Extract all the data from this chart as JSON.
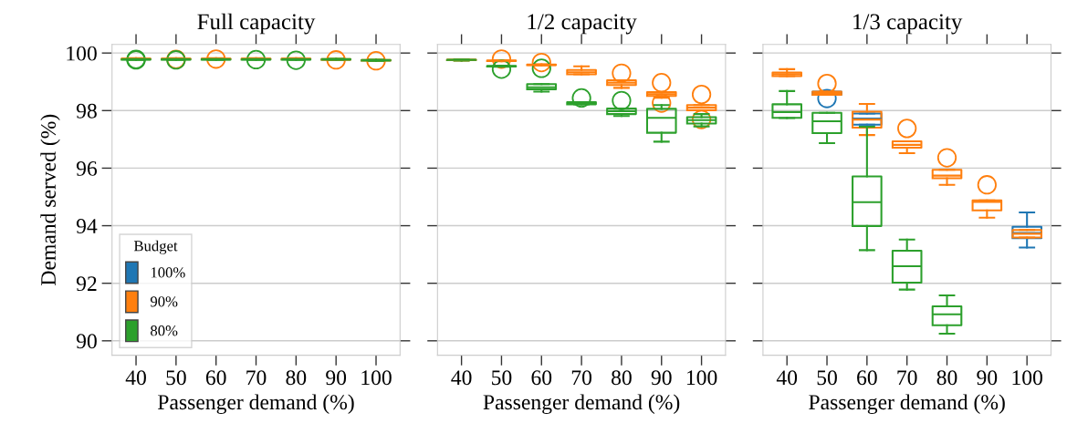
{
  "chart_data": [
    {
      "type": "box",
      "title": "Full capacity",
      "xlabel": "Passenger demand (%)",
      "ylabel": "Demand served (%)",
      "categories": [
        "40",
        "50",
        "60",
        "70",
        "80",
        "90",
        "100"
      ],
      "ylim": [
        89.5,
        100.3
      ],
      "yticks": [
        90,
        92,
        94,
        96,
        98,
        100
      ],
      "grid": "y",
      "legend": "bottom left",
      "legend_title": "Budget",
      "series": [
        {
          "name": "100%",
          "color": "#1f77b4",
          "boxes": [
            null,
            null,
            null,
            null,
            null,
            null,
            null
          ]
        },
        {
          "name": "90%",
          "color": "#ff7f0e",
          "boxes": [
            {
              "low": 99.78,
              "q1": 99.79,
              "median": 99.8,
              "q3": 99.81,
              "high": 99.82
            },
            {
              "low": 99.78,
              "q1": 99.79,
              "median": 99.8,
              "q3": 99.81,
              "high": 99.82,
              "outliers": [
                99.78
              ]
            },
            {
              "low": 99.78,
              "q1": 99.79,
              "median": 99.8,
              "q3": 99.81,
              "high": 99.82,
              "outliers": [
                99.79
              ]
            },
            {
              "low": 99.78,
              "q1": 99.79,
              "median": 99.8,
              "q3": 99.81,
              "high": 99.82
            },
            {
              "low": 99.78,
              "q1": 99.79,
              "median": 99.8,
              "q3": 99.81,
              "high": 99.82
            },
            {
              "low": 99.76,
              "q1": 99.77,
              "median": 99.78,
              "q3": 99.79,
              "high": 99.8,
              "outliers": [
                99.76
              ]
            },
            {
              "low": 99.73,
              "q1": 99.74,
              "median": 99.75,
              "q3": 99.76,
              "high": 99.77,
              "outliers": [
                99.73
              ]
            }
          ]
        },
        {
          "name": "80%",
          "color": "#2ca02c",
          "boxes": [
            {
              "low": 99.76,
              "q1": 99.77,
              "median": 99.78,
              "q3": 99.79,
              "high": 99.8,
              "outliers": [
                99.78,
                99.76
              ]
            },
            {
              "low": 99.76,
              "q1": 99.77,
              "median": 99.78,
              "q3": 99.79,
              "high": 99.8,
              "outliers": [
                99.76
              ]
            },
            {
              "low": 99.76,
              "q1": 99.77,
              "median": 99.78,
              "q3": 99.79,
              "high": 99.8
            },
            {
              "low": 99.76,
              "q1": 99.77,
              "median": 99.78,
              "q3": 99.79,
              "high": 99.8,
              "outliers": [
                99.77
              ]
            },
            {
              "low": 99.76,
              "q1": 99.77,
              "median": 99.78,
              "q3": 99.79,
              "high": 99.8,
              "outliers": [
                99.75
              ]
            },
            {
              "low": 99.76,
              "q1": 99.77,
              "median": 99.78,
              "q3": 99.79,
              "high": 99.8
            },
            {
              "low": 99.73,
              "q1": 99.74,
              "median": 99.75,
              "q3": 99.76,
              "high": 99.77
            }
          ]
        }
      ]
    },
    {
      "type": "box",
      "title": "1/2 capacity",
      "xlabel": "Passenger demand (%)",
      "categories": [
        "40",
        "50",
        "60",
        "70",
        "80",
        "90",
        "100"
      ],
      "ylim": [
        89.5,
        100.3
      ],
      "yticks": [
        90,
        92,
        94,
        96,
        98,
        100
      ],
      "grid": "y",
      "tick_labels": "x",
      "series": [
        {
          "color": "#1f77b4",
          "boxes": [
            null,
            null,
            null,
            null,
            null,
            null,
            null
          ]
        },
        {
          "color": "#ff7f0e",
          "boxes": [
            {
              "low": 99.74,
              "q1": 99.75,
              "median": 99.76,
              "q3": 99.77,
              "high": 99.78
            },
            {
              "low": 99.71,
              "q1": 99.72,
              "median": 99.73,
              "q3": 99.74,
              "high": 99.75,
              "outliers": [
                99.79
              ]
            },
            {
              "low": 99.57,
              "q1": 99.58,
              "median": 99.59,
              "q3": 99.6,
              "high": 99.61,
              "outliers": [
                99.67
              ]
            },
            {
              "low": 99.26,
              "q1": 99.26,
              "median": 99.33,
              "q3": 99.41,
              "high": 99.54
            },
            {
              "low": 98.79,
              "q1": 98.89,
              "median": 98.97,
              "q3": 99.05,
              "high": 99.05,
              "outliers": [
                99.3
              ]
            },
            {
              "low": 98.45,
              "q1": 98.51,
              "median": 98.57,
              "q3": 98.64,
              "high": 98.64,
              "outliers": [
                98.97,
                98.26
              ]
            },
            {
              "low": 98.01,
              "q1": 98.01,
              "median": 98.1,
              "q3": 98.19,
              "high": 98.19,
              "outliers": [
                98.56,
                97.69
              ]
            }
          ]
        },
        {
          "color": "#2ca02c",
          "boxes": [
            {
              "low": 99.74,
              "q1": 99.75,
              "median": 99.76,
              "q3": 99.77,
              "high": 99.78
            },
            {
              "low": 99.52,
              "q1": 99.53,
              "median": 99.54,
              "q3": 99.55,
              "high": 99.56,
              "outliers": [
                99.44
              ]
            },
            {
              "low": 98.66,
              "q1": 98.74,
              "median": 98.81,
              "q3": 98.92,
              "high": 98.92,
              "outliers": [
                99.47
              ]
            },
            {
              "low": 98.22,
              "q1": 98.22,
              "median": 98.26,
              "q3": 98.29,
              "high": 98.29,
              "outliers": [
                98.44
              ]
            },
            {
              "low": 97.81,
              "q1": 97.88,
              "median": 97.98,
              "q3": 98.07,
              "high": 98.07,
              "outliers": [
                98.35
              ]
            },
            {
              "low": 96.92,
              "q1": 97.23,
              "median": 97.75,
              "q3": 98.06,
              "high": 98.19
            },
            {
              "low": 97.45,
              "q1": 97.55,
              "median": 97.67,
              "q3": 97.77,
              "high": 97.88
            }
          ]
        }
      ]
    },
    {
      "type": "box",
      "title": "1/3 capacity",
      "xlabel": "Passenger demand (%)",
      "categories": [
        "40",
        "50",
        "60",
        "70",
        "80",
        "90",
        "100"
      ],
      "ylim": [
        89.5,
        100.3
      ],
      "yticks": [
        90,
        92,
        94,
        96,
        98,
        100
      ],
      "grid": "y",
      "tick_labels": "x",
      "series": [
        {
          "color": "#1f77b4",
          "boxes": [
            null,
            {
              "low": 98.55,
              "q1": 98.55,
              "median": 98.61,
              "q3": 98.66,
              "high": 98.66,
              "outliers": [
                98.42
              ]
            },
            {
              "low": 97.51,
              "q1": 97.51,
              "median": 97.72,
              "q3": 97.9,
              "high": 97.9
            },
            null,
            null,
            null,
            {
              "low": 93.24,
              "q1": 93.57,
              "median": 93.75,
              "q3": 93.96,
              "high": 94.46
            }
          ]
        },
        {
          "color": "#ff7f0e",
          "boxes": [
            {
              "low": 99.2,
              "q1": 99.2,
              "median": 99.26,
              "q3": 99.32,
              "high": 99.44
            },
            {
              "low": 98.55,
              "q1": 98.55,
              "median": 98.61,
              "q3": 98.66,
              "high": 98.66,
              "outliers": [
                98.94
              ]
            },
            {
              "low": 97.15,
              "q1": 97.41,
              "median": 97.69,
              "q3": 97.96,
              "high": 98.23
            },
            {
              "low": 96.52,
              "q1": 96.71,
              "median": 96.81,
              "q3": 96.93,
              "high": 96.93,
              "outliers": [
                97.38
              ]
            },
            {
              "low": 95.42,
              "q1": 95.65,
              "median": 95.74,
              "q3": 95.94,
              "high": 95.94,
              "outliers": [
                96.36
              ]
            },
            {
              "low": 94.28,
              "q1": 94.53,
              "median": 94.83,
              "q3": 94.88,
              "high": 94.88,
              "outliers": [
                95.42
              ]
            },
            {
              "low": 93.59,
              "q1": 93.59,
              "median": 93.72,
              "q3": 93.85,
              "high": 93.85
            }
          ]
        },
        {
          "color": "#2ca02c",
          "boxes": [
            {
              "low": 97.74,
              "q1": 97.75,
              "median": 97.95,
              "q3": 98.22,
              "high": 98.68
            },
            {
              "low": 96.87,
              "q1": 97.22,
              "median": 97.63,
              "q3": 97.92,
              "high": 97.92
            },
            {
              "low": 93.15,
              "q1": 93.99,
              "median": 94.82,
              "q3": 95.71,
              "high": 97.44
            },
            {
              "low": 91.78,
              "q1": 92.02,
              "median": 92.59,
              "q3": 93.13,
              "high": 93.52
            },
            {
              "low": 90.25,
              "q1": 90.54,
              "median": 90.92,
              "q3": 91.2,
              "high": 91.58
            },
            null,
            null
          ]
        }
      ]
    }
  ]
}
